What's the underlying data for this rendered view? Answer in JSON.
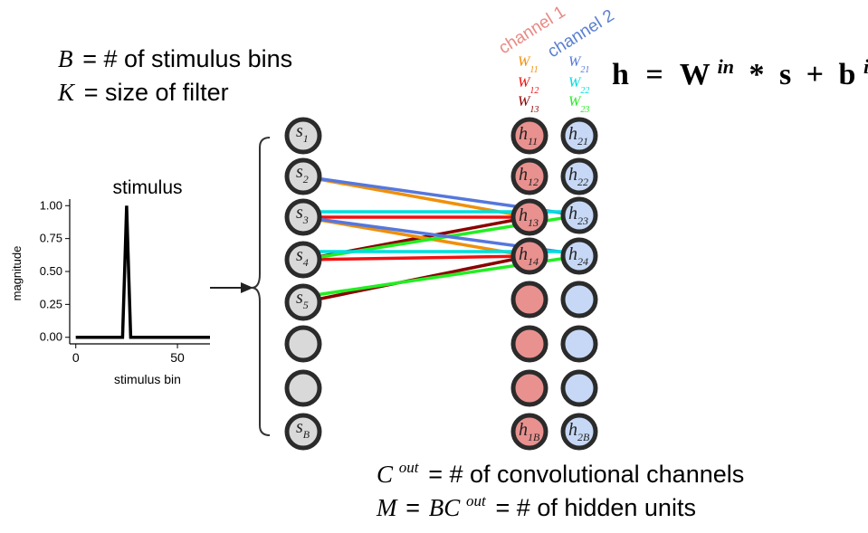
{
  "definitions": {
    "b_sym": "B",
    "b_text": "= # of stimulus bins",
    "k_sym": "K",
    "k_text": "= size of filter",
    "c_sym": "C",
    "c_sup": "out",
    "c_text": "= # of convolutional channels",
    "m_sym": "M",
    "m_eq": "=",
    "m_bc": "BC",
    "m_sup": "out",
    "m_text": "= # of hidden units"
  },
  "formula": {
    "h": "h",
    "eq": "=",
    "W": "W",
    "W_sup": "in",
    "star": "*",
    "s": "s",
    "plus": "+",
    "b": "b",
    "b_sup": "in"
  },
  "channels": {
    "channel1": {
      "label": "channel 1",
      "color": "#e88a85"
    },
    "channel2": {
      "label": "channel 2",
      "color": "#5b80d0"
    }
  },
  "weights": {
    "w11": {
      "base": "W",
      "sub": "11",
      "color": "#f0900a"
    },
    "w12": {
      "base": "W",
      "sub": "12",
      "color": "#ee1111"
    },
    "w13": {
      "base": "W",
      "sub": "13",
      "color": "#8b0000"
    },
    "w21": {
      "base": "W",
      "sub": "21",
      "color": "#5577dd"
    },
    "w22": {
      "base": "W",
      "sub": "22",
      "color": "#00dddd"
    },
    "w23": {
      "base": "W",
      "sub": "23",
      "color": "#22ee22"
    }
  },
  "stimulus_nodes": {
    "s1": {
      "base": "s",
      "sub": "1"
    },
    "s2": {
      "base": "s",
      "sub": "2"
    },
    "s3": {
      "base": "s",
      "sub": "3"
    },
    "s4": {
      "base": "s",
      "sub": "4"
    },
    "s5": {
      "base": "s",
      "sub": "5"
    },
    "sB": {
      "base": "s",
      "sub": "B"
    }
  },
  "hidden_ch1": {
    "h11": {
      "base": "h",
      "sub": "11"
    },
    "h12": {
      "base": "h",
      "sub": "12"
    },
    "h13": {
      "base": "h",
      "sub": "13"
    },
    "h14": {
      "base": "h",
      "sub": "14"
    },
    "h1B": {
      "base": "h",
      "sub": "1B"
    }
  },
  "hidden_ch2": {
    "h21": {
      "base": "h",
      "sub": "21"
    },
    "h22": {
      "base": "h",
      "sub": "22"
    },
    "h23": {
      "base": "h",
      "sub": "23"
    },
    "h24": {
      "base": "h",
      "sub": "24"
    },
    "h2B": {
      "base": "h",
      "sub": "2B"
    }
  },
  "node_colors": {
    "stimulus_fill": "#d9d9d9",
    "channel1_fill": "#e8918f",
    "channel2_fill": "#c6d8f5",
    "outline": "#2b2b2b"
  },
  "plot": {
    "title": "stimulus",
    "xlabel": "stimulus bin",
    "ylabel": "magnitude",
    "yticks": [
      "1.00",
      "0.75",
      "0.50",
      "0.25",
      "0.00"
    ],
    "xticks": [
      "0",
      "50"
    ],
    "chart_data": {
      "type": "line",
      "x": [
        0,
        23,
        24,
        25,
        26,
        27,
        66
      ],
      "y": [
        0,
        0,
        0.5,
        1.0,
        0.5,
        0,
        0
      ],
      "xlim": [
        -3,
        66
      ],
      "ylim": [
        -0.05,
        1.05
      ],
      "grid": false
    }
  }
}
